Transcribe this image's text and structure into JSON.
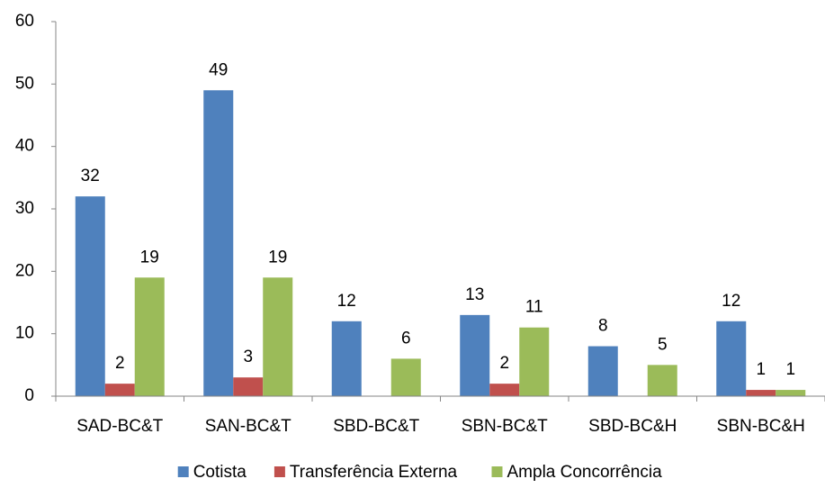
{
  "chart_data": {
    "type": "bar",
    "categories": [
      "SAD-BC&T",
      "SAN-BC&T",
      "SBD-BC&T",
      "SBN-BC&T",
      "SBD-BC&H",
      "SBN-BC&H"
    ],
    "series": [
      {
        "name": "Cotista",
        "color": "#4f81bd",
        "values": [
          32,
          49,
          12,
          13,
          8,
          12
        ]
      },
      {
        "name": "Transferência Externa",
        "color": "#c0504d",
        "values": [
          2,
          3,
          0,
          2,
          0,
          1
        ],
        "value_labels": [
          "2",
          "3",
          null,
          "2",
          null,
          "1"
        ]
      },
      {
        "name": "Ampla Concorrência",
        "color": "#9bbb59",
        "values": [
          19,
          19,
          6,
          11,
          5,
          1
        ]
      }
    ],
    "ylim": [
      0,
      60
    ],
    "yticks": [
      0,
      10,
      20,
      30,
      40,
      50,
      60
    ],
    "grid": false,
    "legend": "bottom"
  }
}
